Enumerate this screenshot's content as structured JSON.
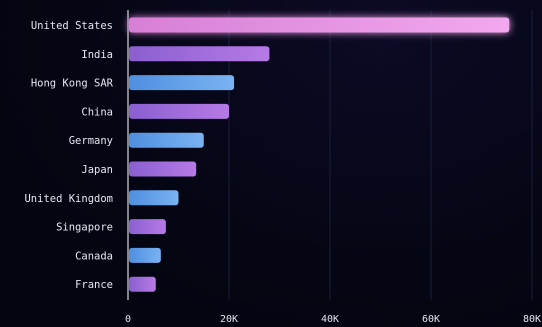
{
  "chart_data": {
    "type": "bar",
    "orientation": "horizontal",
    "categories": [
      "United States",
      "India",
      "Hong Kong SAR",
      "China",
      "Germany",
      "Japan",
      "United Kingdom",
      "Singapore",
      "Canada",
      "France"
    ],
    "values": [
      75500,
      28000,
      21000,
      20000,
      15000,
      13500,
      10000,
      7500,
      6500,
      5500
    ],
    "xlim": [
      0,
      80000
    ],
    "x_ticks": [
      0,
      20000,
      40000,
      60000,
      80000
    ],
    "x_tick_labels": [
      "0",
      "20K",
      "40K",
      "60K",
      "80K"
    ],
    "title": "",
    "xlabel": "",
    "ylabel": "",
    "grid": true,
    "colors": {
      "background": "#04050f",
      "text": "#e6e6f0",
      "gridline": "#1a1f3a",
      "axis": "#d8d8e0",
      "highlight_bar": [
        "#d77fd5",
        "#f2a8ee"
      ],
      "purple_bar": [
        "#8a5fd0",
        "#b67ae6"
      ],
      "blue_bar": [
        "#4f8fe0",
        "#7ab3f2"
      ]
    },
    "bar_color_scheme": [
      "highlight",
      "purple",
      "blue",
      "purple",
      "blue",
      "purple",
      "blue",
      "purple",
      "blue",
      "purple"
    ]
  }
}
